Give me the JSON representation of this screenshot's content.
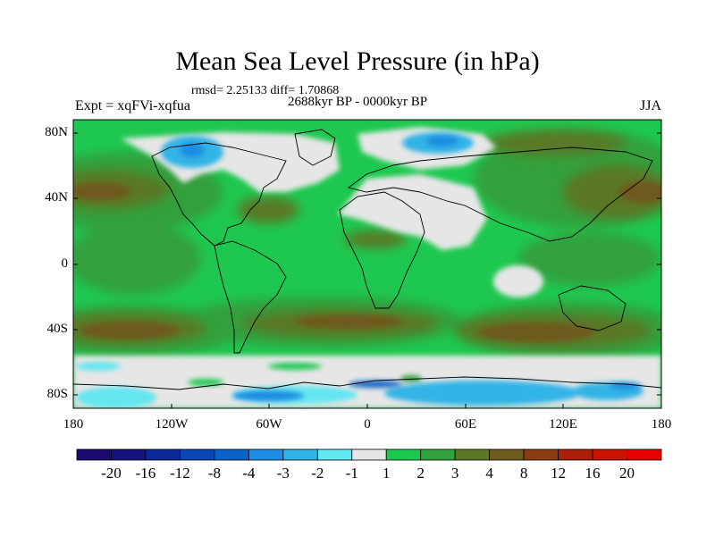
{
  "header": {
    "title": "Mean Sea Level Pressure (in hPa)",
    "stats": "rmsd= 2.25133 diff= 1.70868",
    "experiment": "Expt = xqFVi-xqfua",
    "period": "2688kyr BP - 0000kyr BP",
    "season": "JJA"
  },
  "axes": {
    "lat_ticks": [
      "80N",
      "40N",
      "0",
      "40S",
      "80S"
    ],
    "lon_ticks": [
      "180",
      "120W",
      "60W",
      "0",
      "60E",
      "120E",
      "180"
    ]
  },
  "colorbar": {
    "labels": [
      "-20",
      "-16",
      "-12",
      "-8",
      "-4",
      "-3",
      "-2",
      "-1",
      "1",
      "2",
      "3",
      "4",
      "8",
      "12",
      "16",
      "20"
    ],
    "colors": [
      "#1a0a6e",
      "#14147a",
      "#0a2896",
      "#0a46b4",
      "#0a64c8",
      "#1e8ce1",
      "#32b4e6",
      "#64e6f0",
      "#e6e6e6",
      "#1ec850",
      "#32a03c",
      "#5a7828",
      "#6e5a1e",
      "#8c3c14",
      "#aa1e0a",
      "#c81400",
      "#e60000"
    ]
  },
  "colors": {
    "green": "#1ec850",
    "dark_green": "#32a03c",
    "olive": "#5a7828",
    "brown": "#6e5a1e",
    "grey": "#e6e6e6",
    "cyan": "#32b4e6",
    "blue": "#0a64c8"
  }
}
